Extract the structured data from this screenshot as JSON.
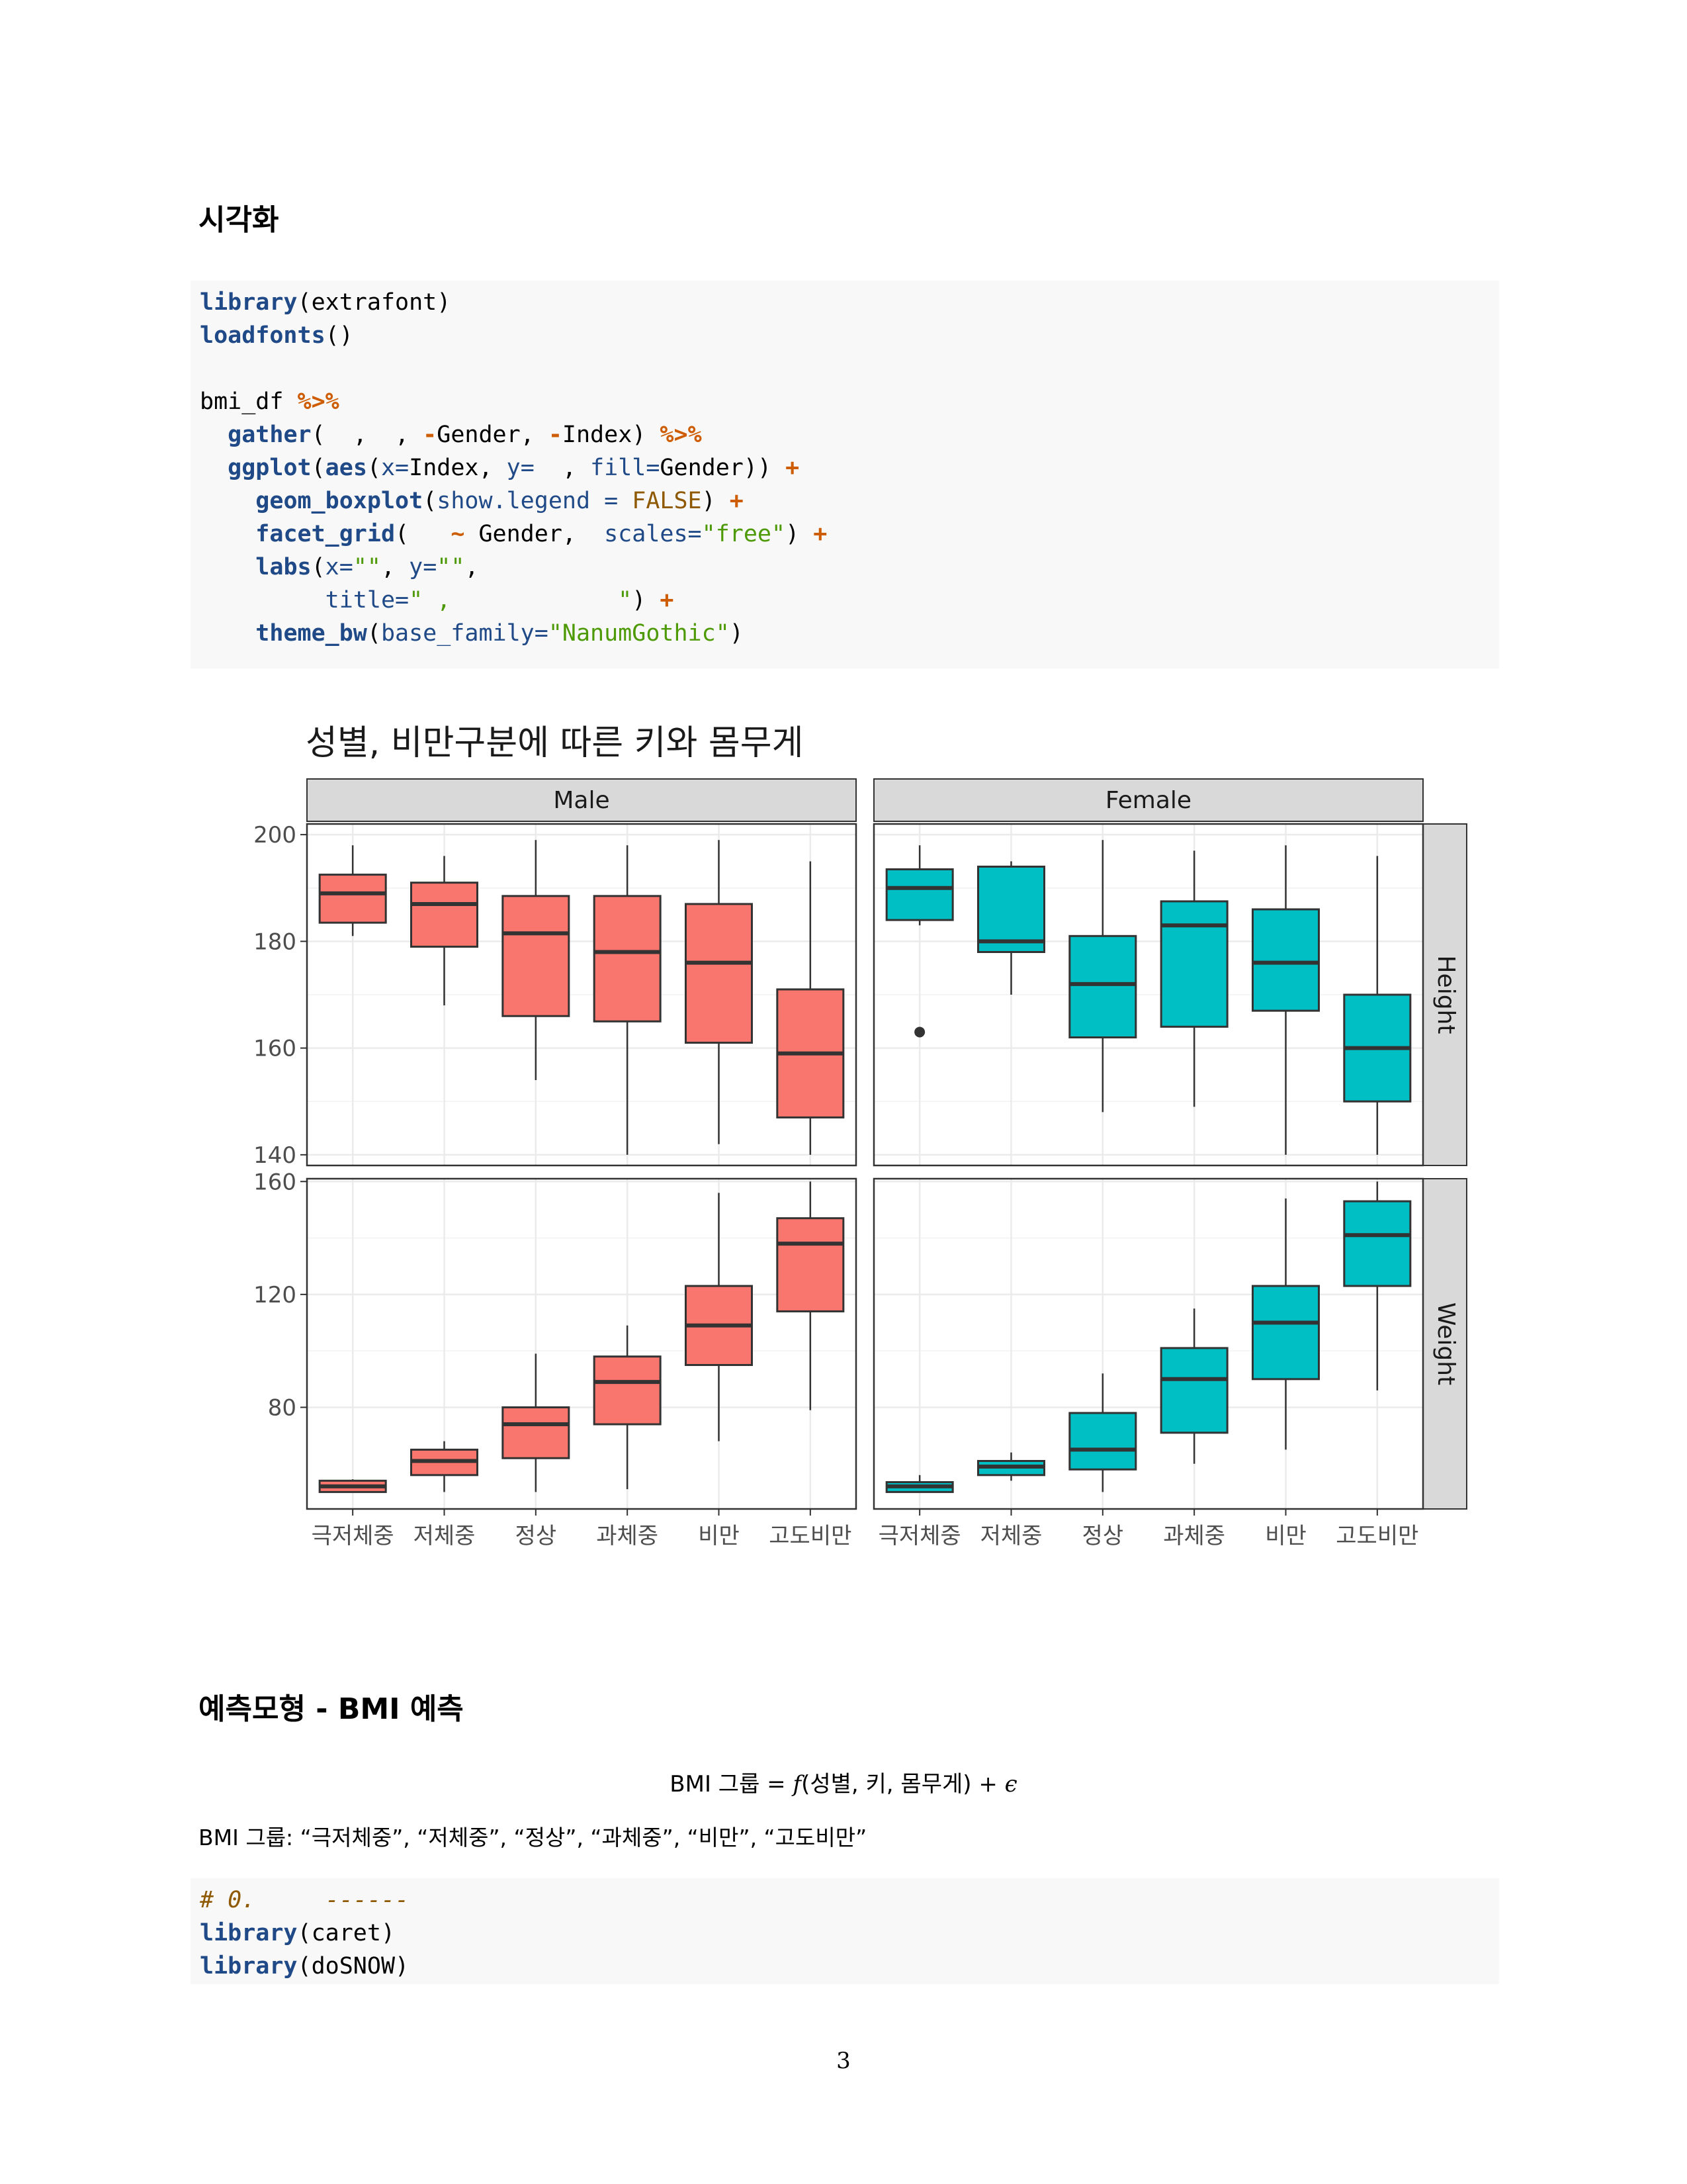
{
  "section1": {
    "heading": "시각화"
  },
  "code1": {
    "lines": [
      [
        [
          "kw",
          "library"
        ],
        [
          "",
          "(extrafont)"
        ]
      ],
      [
        [
          "kw",
          "loadfonts"
        ],
        [
          "",
          "()"
        ]
      ],
      [],
      [
        [
          "",
          "bmi_df "
        ],
        [
          "op",
          "%>%"
        ]
      ],
      [
        [
          "",
          "  "
        ],
        [
          "kw",
          "gather"
        ],
        [
          "",
          "(  ,  , "
        ],
        [
          "op",
          "-"
        ],
        [
          "",
          "Gender, "
        ],
        [
          "op",
          "-"
        ],
        [
          "",
          "Index) "
        ],
        [
          "op",
          "%>%"
        ]
      ],
      [
        [
          "",
          "  "
        ],
        [
          "kw",
          "ggplot"
        ],
        [
          "",
          "("
        ],
        [
          "kw",
          "aes"
        ],
        [
          "",
          "("
        ],
        [
          "arg",
          "x="
        ],
        [
          "",
          "Index, "
        ],
        [
          "arg",
          "y="
        ],
        [
          "",
          "  , "
        ],
        [
          "arg",
          "fill="
        ],
        [
          "",
          "Gender)) "
        ],
        [
          "op",
          "+"
        ]
      ],
      [
        [
          "",
          "    "
        ],
        [
          "kw",
          "geom_boxplot"
        ],
        [
          "",
          "("
        ],
        [
          "arg",
          "show.legend = "
        ],
        [
          "const",
          "FALSE"
        ],
        [
          "",
          ") "
        ],
        [
          "op",
          "+"
        ]
      ],
      [
        [
          "",
          "    "
        ],
        [
          "kw",
          "facet_grid"
        ],
        [
          "",
          "(   "
        ],
        [
          "op",
          "~"
        ],
        [
          "",
          " Gender,  "
        ],
        [
          "arg",
          "scales="
        ],
        [
          "str",
          "\"free\""
        ],
        [
          "",
          ") "
        ],
        [
          "op",
          "+"
        ]
      ],
      [
        [
          "",
          "    "
        ],
        [
          "kw",
          "labs"
        ],
        [
          "",
          "("
        ],
        [
          "arg",
          "x="
        ],
        [
          "str",
          "\"\""
        ],
        [
          "",
          ", "
        ],
        [
          "arg",
          "y="
        ],
        [
          "str",
          "\"\""
        ],
        [
          "",
          ","
        ]
      ],
      [
        [
          "",
          "         "
        ],
        [
          "arg",
          "title="
        ],
        [
          "str",
          "\" ,            \""
        ],
        [
          "",
          ") "
        ],
        [
          "op",
          "+"
        ]
      ],
      [
        [
          "",
          "    "
        ],
        [
          "kw",
          "theme_bw"
        ],
        [
          "",
          "("
        ],
        [
          "arg",
          "base_family="
        ],
        [
          "str",
          "\"NanumGothic\""
        ],
        [
          "",
          ")"
        ]
      ]
    ]
  },
  "chart_data": {
    "type": "boxplot",
    "title": "성별, 비만구분에 따른 키와 몸무게",
    "xlabel": "",
    "ylabel": "",
    "categories": [
      "극저체중",
      "저체중",
      "정상",
      "과체중",
      "비만",
      "고도비만"
    ],
    "facet_columns": [
      "Male",
      "Female"
    ],
    "facet_rows": [
      "Height",
      "Weight"
    ],
    "colors": {
      "Male": "#F8766D",
      "Female": "#00BFC4"
    },
    "grid": true,
    "legend": "none",
    "rows": [
      {
        "name": "Height",
        "ylim": [
          138,
          202
        ],
        "ticks": [
          140,
          160,
          180,
          200
        ],
        "panels": {
          "Male": [
            {
              "min": 181,
              "q1": 183.5,
              "median": 189,
              "q3": 192.5,
              "max": 198,
              "outliers": []
            },
            {
              "min": 168,
              "q1": 179,
              "median": 187,
              "q3": 191,
              "max": 196,
              "outliers": []
            },
            {
              "min": 154,
              "q1": 166,
              "median": 181.5,
              "q3": 188.5,
              "max": 199,
              "outliers": []
            },
            {
              "min": 140,
              "q1": 165,
              "median": 178,
              "q3": 188.5,
              "max": 198,
              "outliers": []
            },
            {
              "min": 142,
              "q1": 161,
              "median": 176,
              "q3": 187,
              "max": 199,
              "outliers": []
            },
            {
              "min": 140,
              "q1": 147,
              "median": 159,
              "q3": 171,
              "max": 195,
              "outliers": []
            }
          ],
          "Female": [
            {
              "min": 183,
              "q1": 184,
              "median": 190,
              "q3": 193.5,
              "max": 198,
              "outliers": [
                163
              ]
            },
            {
              "min": 170,
              "q1": 178,
              "median": 180,
              "q3": 194,
              "max": 195,
              "outliers": []
            },
            {
              "min": 148,
              "q1": 162,
              "median": 172,
              "q3": 181,
              "max": 199,
              "outliers": []
            },
            {
              "min": 149,
              "q1": 164,
              "median": 183,
              "q3": 187.5,
              "max": 197,
              "outliers": []
            },
            {
              "min": 140,
              "q1": 167,
              "median": 176,
              "q3": 186,
              "max": 198,
              "outliers": []
            },
            {
              "min": 140,
              "q1": 150,
              "median": 160,
              "q3": 170,
              "max": 196,
              "outliers": []
            }
          ]
        }
      },
      {
        "name": "Weight",
        "ylim": [
          44,
          161
        ],
        "ticks": [
          80,
          120,
          160
        ],
        "panels": {
          "Male": [
            {
              "min": 50,
              "q1": 50,
              "median": 52,
              "q3": 54,
              "max": 54.5,
              "outliers": []
            },
            {
              "min": 50,
              "q1": 56,
              "median": 61,
              "q3": 65,
              "max": 68,
              "outliers": []
            },
            {
              "min": 50,
              "q1": 62,
              "median": 74,
              "q3": 80,
              "max": 99,
              "outliers": []
            },
            {
              "min": 51,
              "q1": 74,
              "median": 89,
              "q3": 98,
              "max": 109,
              "outliers": []
            },
            {
              "min": 68,
              "q1": 95,
              "median": 109,
              "q3": 123,
              "max": 156,
              "outliers": []
            },
            {
              "min": 79,
              "q1": 114,
              "median": 138,
              "q3": 147,
              "max": 160,
              "outliers": []
            }
          ],
          "Female": [
            {
              "min": 50,
              "q1": 50,
              "median": 52,
              "q3": 53.5,
              "max": 56,
              "outliers": []
            },
            {
              "min": 54,
              "q1": 56,
              "median": 59,
              "q3": 61,
              "max": 64,
              "outliers": []
            },
            {
              "min": 50,
              "q1": 58,
              "median": 65,
              "q3": 78,
              "max": 92,
              "outliers": []
            },
            {
              "min": 60,
              "q1": 71,
              "median": 90,
              "q3": 101,
              "max": 115,
              "outliers": []
            },
            {
              "min": 65,
              "q1": 90,
              "median": 110,
              "q3": 123,
              "max": 154,
              "outliers": []
            },
            {
              "min": 86,
              "q1": 123,
              "median": 141,
              "q3": 153,
              "max": 160,
              "outliers": []
            }
          ]
        }
      }
    ]
  },
  "section2": {
    "heading": "예측모형 - BMI 예측"
  },
  "formula": {
    "lhs": "BMI 그룹",
    "eq": "=",
    "fn": "f",
    "args": "(성별, 키, 몸무게)",
    "plus": "+",
    "eps": "ϵ"
  },
  "groups_text": "BMI 그룹: “극저체중”, “저체중”, “정상”, “과체중”, “비만”, “고도비만”",
  "code2": {
    "lines": [
      [
        [
          "cm",
          "# 0.     ------"
        ]
      ],
      [
        [
          "kw",
          "library"
        ],
        [
          "",
          "(caret)"
        ]
      ],
      [
        [
          "kw",
          "library"
        ],
        [
          "",
          "(doSNOW)"
        ]
      ]
    ]
  },
  "page_number": "3"
}
